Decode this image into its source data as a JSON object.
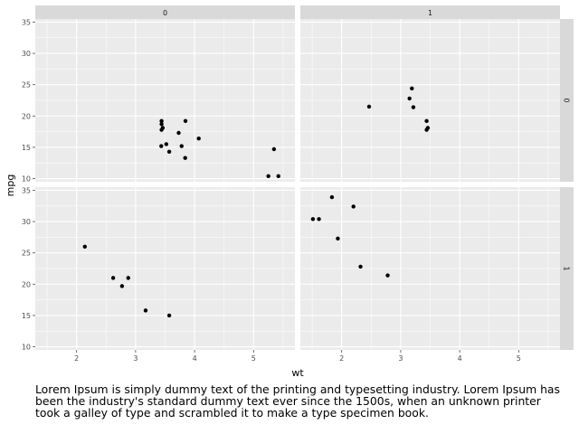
{
  "chart_data": {
    "type": "scatter",
    "facet": "grid",
    "xlabel": "wt",
    "ylabel": "mpg",
    "xlim": [
      1.3,
      5.7
    ],
    "ylim": [
      9.5,
      35.5
    ],
    "x_ticks": [
      2,
      3,
      4,
      5
    ],
    "y_ticks": [
      10,
      15,
      20,
      25,
      30,
      35
    ],
    "col_strips": [
      "0",
      "1"
    ],
    "row_strips": [
      "0",
      "1"
    ],
    "grid": true,
    "point_color": "#000000",
    "panel_background": "#ebebeb",
    "strip_background": "#d9d9d9",
    "panels": [
      {
        "row": "0",
        "col": "0",
        "points": [
          {
            "x": 3.44,
            "y": 18.7
          },
          {
            "x": 3.46,
            "y": 18.1
          },
          {
            "x": 3.57,
            "y": 14.3
          },
          {
            "x": 3.44,
            "y": 19.2
          },
          {
            "x": 3.44,
            "y": 17.8
          },
          {
            "x": 4.07,
            "y": 16.4
          },
          {
            "x": 3.73,
            "y": 17.3
          },
          {
            "x": 3.78,
            "y": 15.2
          },
          {
            "x": 5.25,
            "y": 10.4
          },
          {
            "x": 5.42,
            "y": 10.4
          },
          {
            "x": 5.345,
            "y": 14.7
          },
          {
            "x": 3.52,
            "y": 15.5
          },
          {
            "x": 3.435,
            "y": 15.2
          },
          {
            "x": 3.84,
            "y": 13.3
          },
          {
            "x": 3.845,
            "y": 19.2
          }
        ]
      },
      {
        "row": "0",
        "col": "1",
        "points": [
          {
            "x": 3.215,
            "y": 21.4
          },
          {
            "x": 3.46,
            "y": 18.1
          },
          {
            "x": 3.19,
            "y": 24.4
          },
          {
            "x": 3.15,
            "y": 22.8
          },
          {
            "x": 3.44,
            "y": 19.2
          },
          {
            "x": 3.44,
            "y": 17.8
          },
          {
            "x": 2.465,
            "y": 21.5
          }
        ]
      },
      {
        "row": "1",
        "col": "0",
        "points": [
          {
            "x": 2.14,
            "y": 26.0
          },
          {
            "x": 2.62,
            "y": 21.0
          },
          {
            "x": 2.875,
            "y": 21.0
          },
          {
            "x": 2.77,
            "y": 19.7
          },
          {
            "x": 3.17,
            "y": 15.8
          },
          {
            "x": 3.57,
            "y": 15.0
          }
        ]
      },
      {
        "row": "1",
        "col": "1",
        "points": [
          {
            "x": 2.2,
            "y": 32.4
          },
          {
            "x": 1.615,
            "y": 30.4
          },
          {
            "x": 1.835,
            "y": 33.9
          },
          {
            "x": 1.935,
            "y": 27.3
          },
          {
            "x": 1.513,
            "y": 30.4
          },
          {
            "x": 2.32,
            "y": 22.8
          },
          {
            "x": 2.78,
            "y": 21.4
          }
        ]
      }
    ]
  },
  "caption": "Lorem Ipsum is simply dummy text of the printing and typesetting industry. Lorem Ipsum has been the industry's standard dummy text ever since the 1500s, when an unknown printer took a galley of type and scrambled it to make a type specimen book."
}
